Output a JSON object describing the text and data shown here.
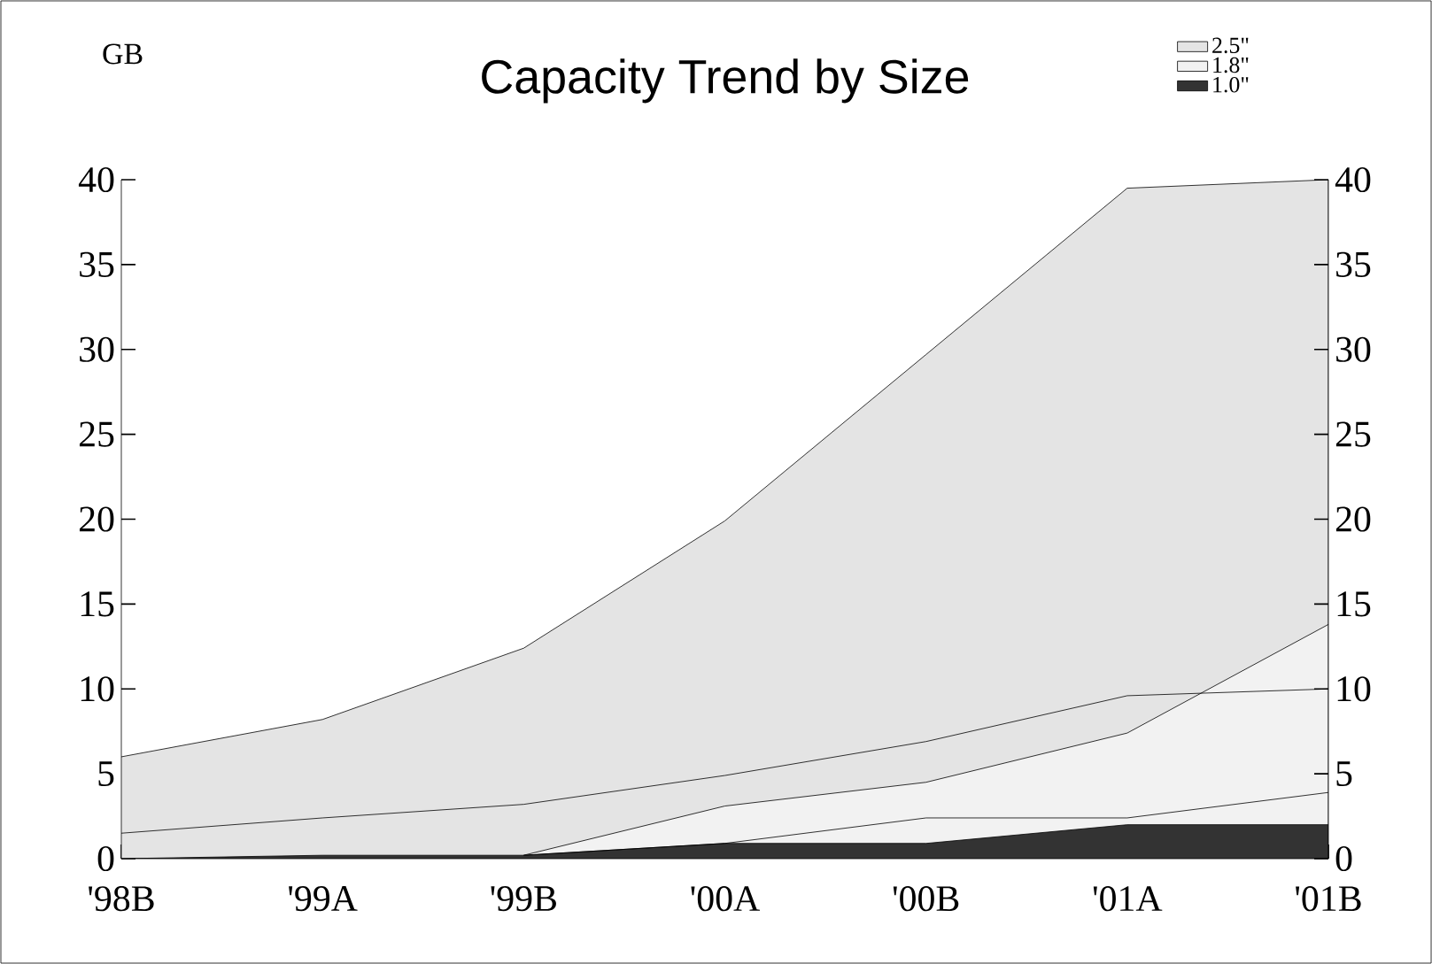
{
  "chart_data": {
    "type": "area",
    "title": "Capacity Trend by Size",
    "ylabel": "GB",
    "categories": [
      "'98B",
      "'99A",
      "'99B",
      "'00A",
      "'00B",
      "'01A",
      "'01B"
    ],
    "series": [
      {
        "name": "2.5\"",
        "color": "#e4e4e4",
        "values": [
          6,
          8.2,
          12.4,
          19.9,
          29.7,
          39.5,
          40
        ]
      },
      {
        "name": "1.8\"",
        "color": "#f2f2f2",
        "values": [
          null,
          null,
          0.2,
          3.1,
          4.5,
          7.4,
          13.8
        ]
      },
      {
        "name": "1.0\"",
        "color": "#333333",
        "values": [
          0,
          0.2,
          0.2,
          0.9,
          0.9,
          2,
          2
        ]
      },
      {
        "type": "line",
        "color": "#000000",
        "values": [
          1.5,
          2.4,
          3.2,
          4.9,
          6.9,
          9.6,
          10
        ]
      },
      {
        "type": "line",
        "color": "#000000",
        "values": [
          null,
          null,
          0.2,
          0.9,
          2.4,
          2.4,
          3.9
        ]
      }
    ],
    "ylim": [
      0,
      40
    ],
    "yticks": [
      0,
      5,
      10,
      15,
      20,
      25,
      30,
      35,
      40
    ],
    "y2lim": [
      0,
      40
    ],
    "y2ticks": [
      0,
      5,
      10,
      15,
      20,
      25,
      30,
      35,
      40
    ],
    "grid": false,
    "legend": "top right"
  }
}
